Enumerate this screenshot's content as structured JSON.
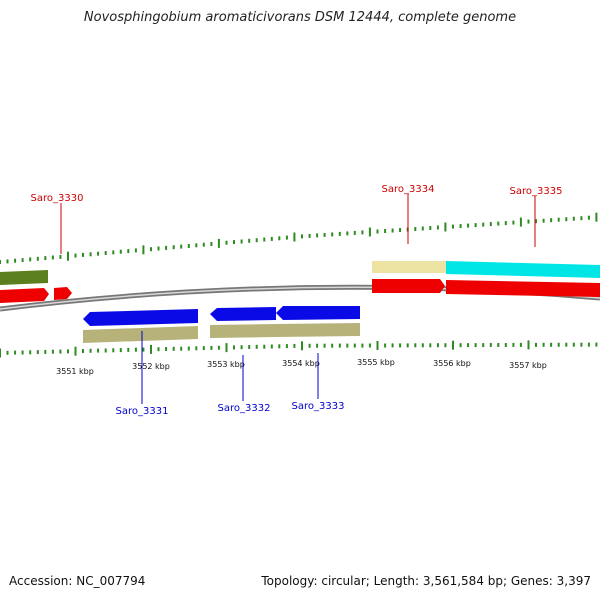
{
  "title": "Novosphingobium aromaticivorans DSM 12444, complete genome",
  "footer": {
    "accession": "Accession: NC_007794",
    "topology": "Topology: circular; Length: 3,561,584 bp; Genes: 3,397"
  },
  "scale_labels": [
    "3551 kbp",
    "3552 kbp",
    "3553 kbp",
    "3554 kbp",
    "3555 kbp",
    "3556 kbp",
    "3557 kbp"
  ],
  "gene_labels_top": [
    "Saro_3330",
    "Saro_3334",
    "Saro_3335"
  ],
  "gene_labels_bottom": [
    "Saro_3331",
    "Saro_3332",
    "Saro_3333"
  ],
  "colors": {
    "label_top": "#cc0000",
    "label_bottom": "#0000cc",
    "backbone": "#888888",
    "tick": "#2e8b22",
    "gene_red": "#ee0000",
    "gene_blue": "#0a0ae6",
    "gene_olive": "#5b7f1e",
    "gene_khaki": "#b7b27a",
    "gene_pale": "#ece2a2",
    "gene_cyan": "#00e6e6"
  }
}
